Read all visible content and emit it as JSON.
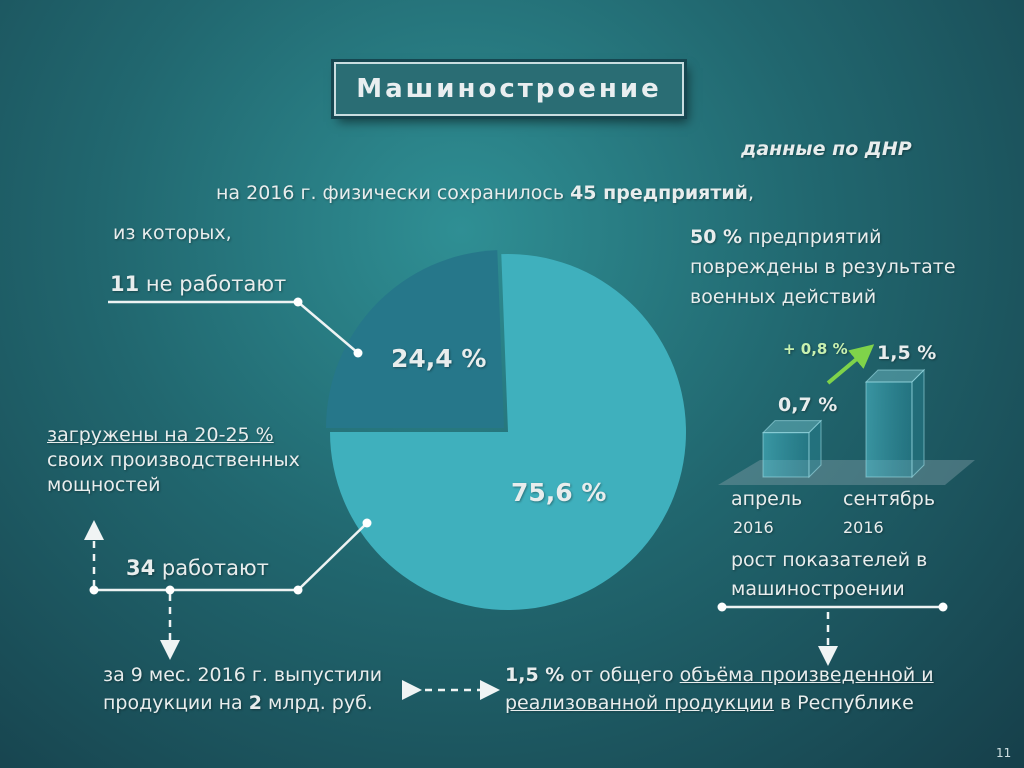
{
  "slide": {
    "title": "Машиностроение",
    "source_note": "данные по ДНР",
    "intro_prefix": "на 2016 г. физически сохранилось ",
    "intro_bold": "45 предприятий",
    "intro_suffix": ",",
    "of_which": "из которых,",
    "not_working_count": "11",
    "not_working_label": " не работают",
    "loaded_underlined": "загружены на 20-25 %",
    "loaded_line2": "своих производственных",
    "loaded_line3": "мощностей",
    "working_count": "34",
    "working_label": " работают",
    "output_line1": "за 9 мес. 2016 г. выпустили",
    "output_line2_prefix": "продукции на ",
    "output_line2_bold": "2",
    "output_line2_suffix": " млрд. руб.",
    "share_bold": "1,5 %",
    "share_text1": " от общего ",
    "share_underlined1": "объёма произведенной и",
    "share_underlined2": "реализованной продукции",
    "share_text2": " в Республике",
    "damaged_bold": "50 %",
    "damaged_line1": " предприятий",
    "damaged_line2": "повреждены в результате",
    "damaged_line3": "военных действий",
    "growth_label": "+ 0,8 %",
    "bar1_value": "0,7 %",
    "bar2_value": "1,5 %",
    "bar1_month": "апрель",
    "bar1_year": "2016",
    "bar2_month": "сентябрь",
    "bar2_year": "2016",
    "growth_caption1": "рост показателей в",
    "growth_caption2": "машиностроении",
    "page_number": "11"
  },
  "chart_data": {
    "type": "pie",
    "slices": [
      {
        "label": "24,4 %",
        "value": 24.4,
        "color": "#26778a"
      },
      {
        "label": "75,6 %",
        "value": 75.6,
        "color": "#3fb0bd"
      }
    ],
    "bars": {
      "type": "bar",
      "categories": [
        "апрель 2016",
        "сентябрь 2016"
      ],
      "values": [
        0.7,
        1.5
      ]
    }
  }
}
